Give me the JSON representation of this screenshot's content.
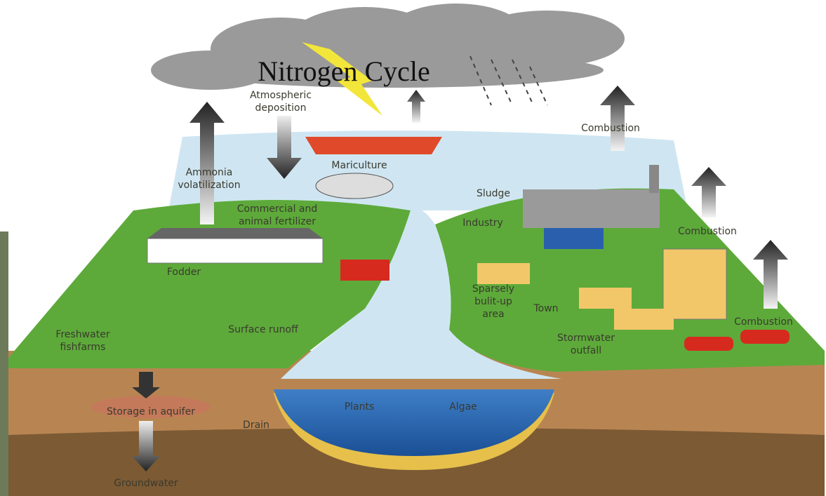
{
  "title": "Nitrogen Cycle",
  "labels": [
    {
      "lines": [
        "Atmospheric",
        "deposition"
      ]
    },
    {
      "lines": [
        "Ammonia",
        "volatilization"
      ]
    },
    {
      "lines": [
        "Mariculture"
      ]
    },
    {
      "lines": [
        "Sludge"
      ]
    },
    {
      "lines": [
        "Combustion"
      ]
    },
    {
      "lines": [
        "Commercial and",
        "animal fertilizer"
      ]
    },
    {
      "lines": [
        "Industry"
      ]
    },
    {
      "lines": [
        "Combustion"
      ]
    },
    {
      "lines": [
        "Fodder"
      ]
    },
    {
      "lines": [
        "Sparsely",
        "bulit-up",
        "area"
      ]
    },
    {
      "lines": [
        "Town"
      ]
    },
    {
      "lines": [
        "Freshwater",
        "fishfarms"
      ]
    },
    {
      "lines": [
        "Surface runoff"
      ]
    },
    {
      "lines": [
        "Combustion"
      ]
    },
    {
      "lines": [
        "Stormwater",
        "outfall"
      ]
    },
    {
      "lines": [
        "Plants"
      ]
    },
    {
      "lines": [
        "Algae"
      ]
    },
    {
      "lines": [
        "Storage in aquifer"
      ]
    },
    {
      "lines": [
        "Drain"
      ]
    },
    {
      "lines": [
        "Groundwater"
      ]
    }
  ]
}
